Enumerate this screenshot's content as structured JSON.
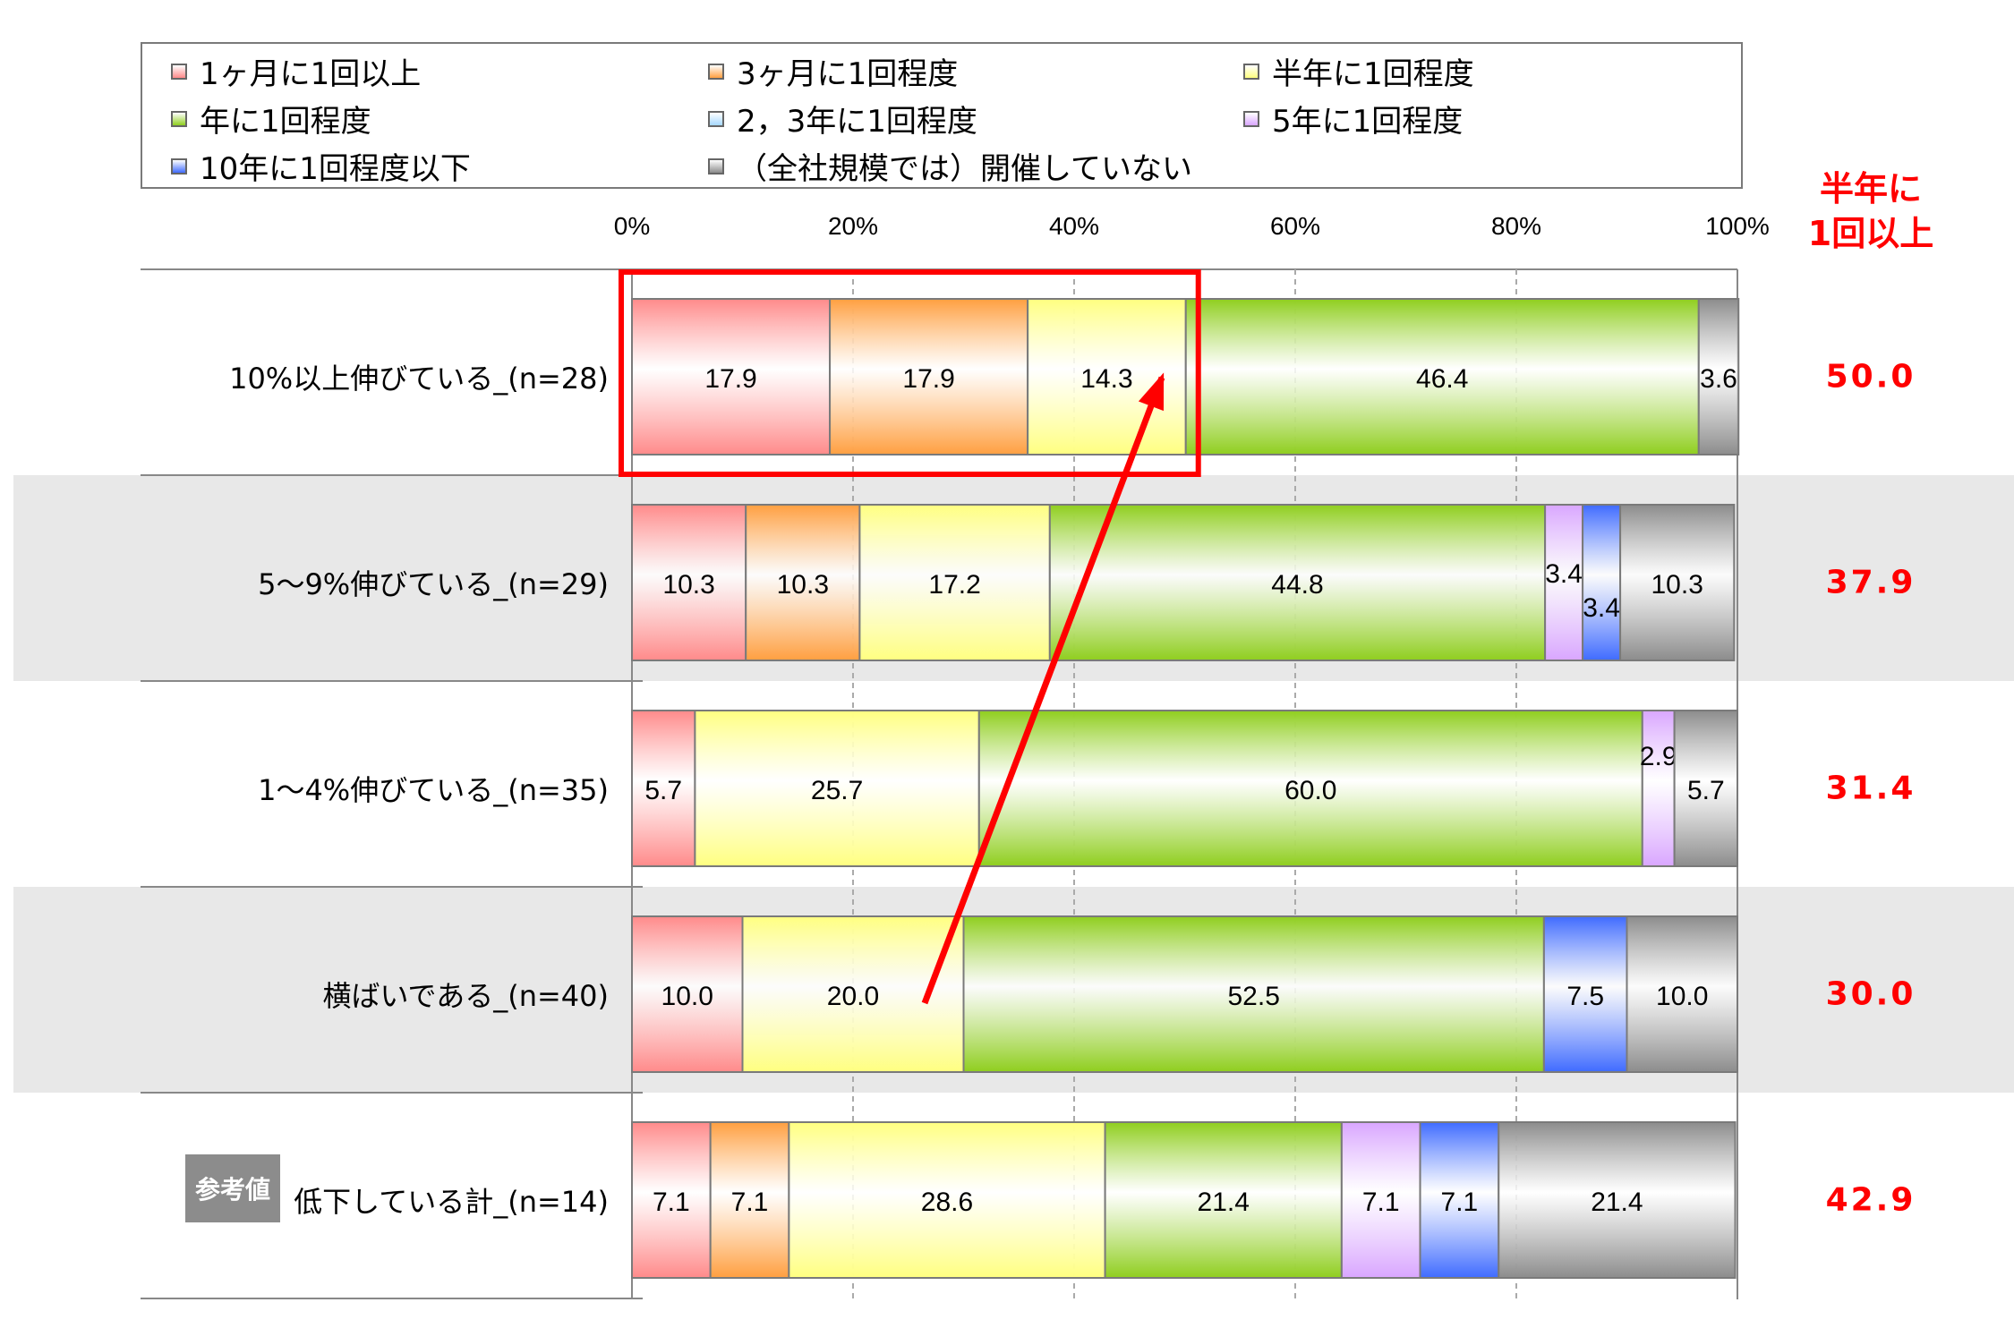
{
  "legend": [
    {
      "label": "1ヶ月に1回以上",
      "color": "#ff8a8a"
    },
    {
      "label": "3ヶ月に1回程度",
      "color": "#ff9f40"
    },
    {
      "label": "半年に1回程度",
      "color": "#ffff80"
    },
    {
      "label": "年に1回程度",
      "color": "#8fce1e"
    },
    {
      "label": "2，3年に1回程度",
      "color": "#a6d8ff"
    },
    {
      "label": "5年に1回程度",
      "color": "#d9a6ff"
    },
    {
      "label": "10年に1回程度以下",
      "color": "#3f6bff"
    },
    {
      "label": "（全社規模では）開催していない",
      "color": "#8c8c8c"
    }
  ],
  "side_header": {
    "line1": "半年に",
    "line2": "1回以上"
  },
  "badge": "参考値",
  "chart_data": {
    "type": "bar",
    "orientation": "horizontal",
    "stacked": true,
    "xlim": [
      0,
      100
    ],
    "x_ticks": [
      "0%",
      "20%",
      "40%",
      "60%",
      "80%",
      "100%"
    ],
    "categories": [
      "10%以上伸びている_(n=28)",
      "5～9%伸びている_(n=29)",
      "1～4%伸びている_(n=35)",
      "横ばいである_(n=40)",
      "低下している計_(n=14)"
    ],
    "series": [
      {
        "name": "1ヶ月に1回以上",
        "values": [
          17.9,
          10.3,
          5.7,
          10.0,
          7.1
        ]
      },
      {
        "name": "3ヶ月に1回程度",
        "values": [
          17.9,
          10.3,
          null,
          null,
          7.1
        ]
      },
      {
        "name": "半年に1回程度",
        "values": [
          14.3,
          17.2,
          25.7,
          20.0,
          28.6
        ]
      },
      {
        "name": "年に1回程度",
        "values": [
          46.4,
          44.8,
          60.0,
          52.5,
          21.4
        ]
      },
      {
        "name": "2，3年に1回程度",
        "values": [
          null,
          null,
          null,
          null,
          null
        ]
      },
      {
        "name": "5年に1回程度",
        "values": [
          null,
          3.4,
          2.9,
          null,
          7.1
        ]
      },
      {
        "name": "10年に1回程度以下",
        "values": [
          null,
          3.4,
          null,
          7.5,
          7.1
        ]
      },
      {
        "name": "（全社規模では）開催していない",
        "values": [
          3.6,
          10.3,
          5.7,
          10.0,
          21.4
        ]
      }
    ],
    "side_values": [
      "50.0",
      "37.9",
      "31.4",
      "30.0",
      "42.9"
    ],
    "grid": true
  }
}
